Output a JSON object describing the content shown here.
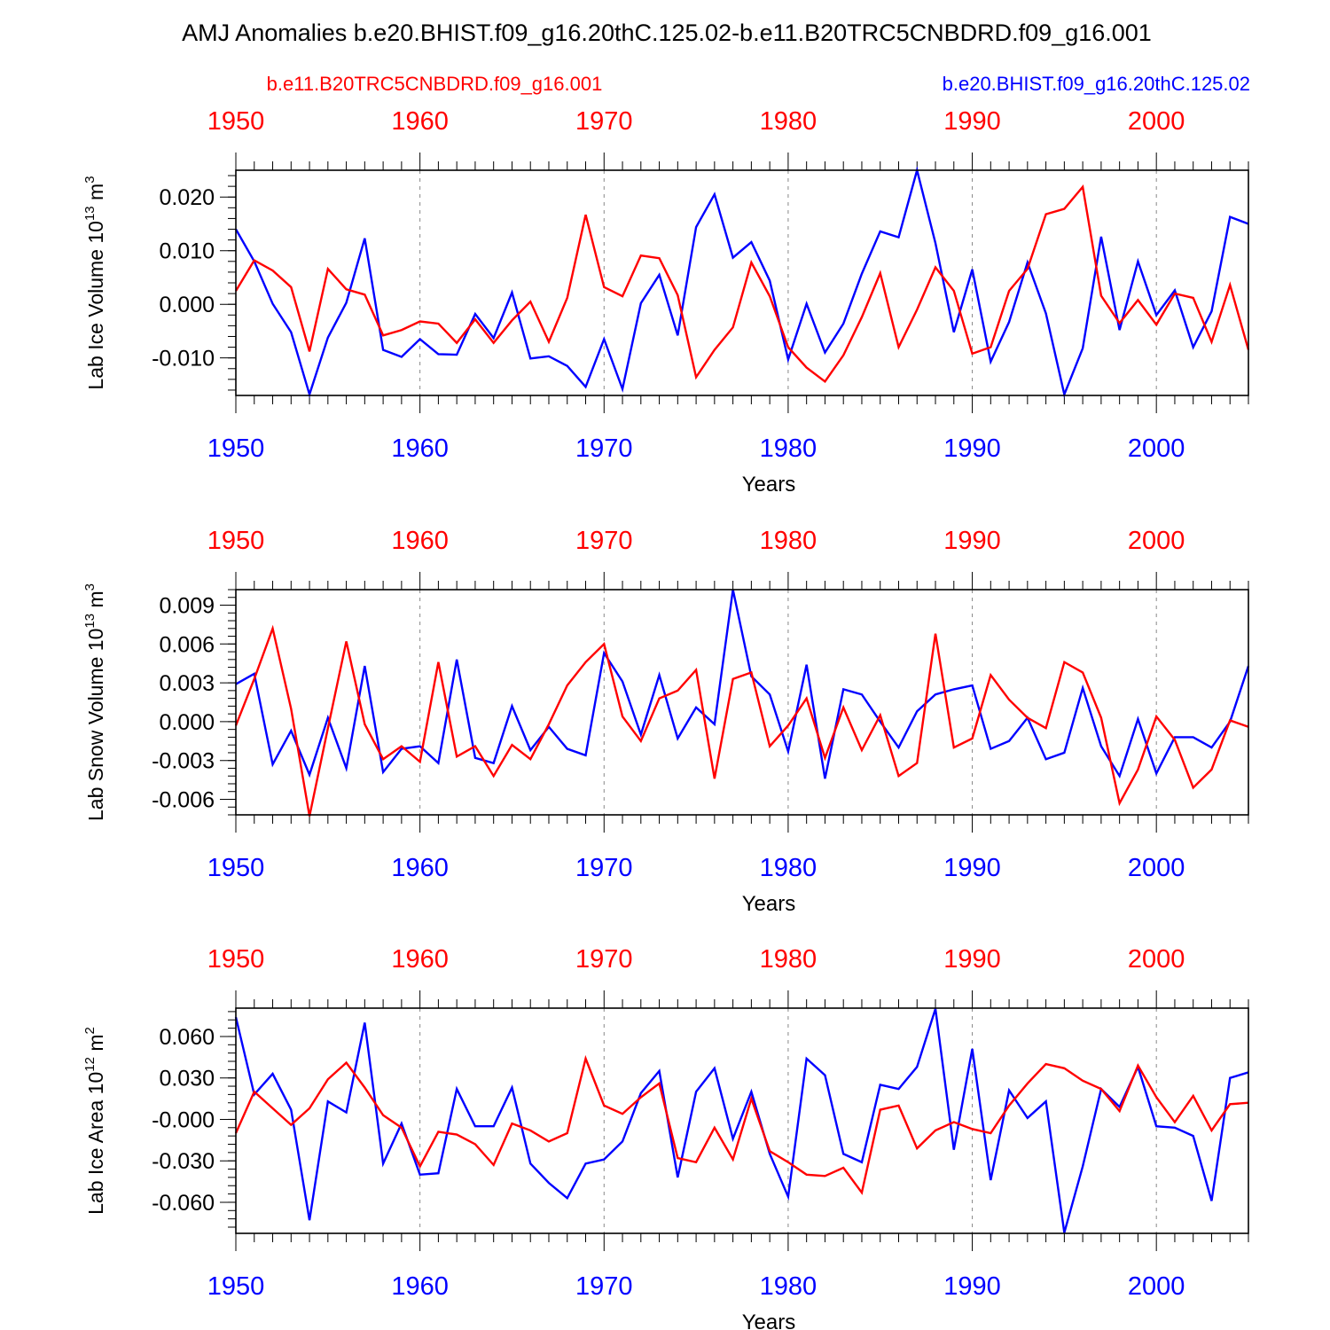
{
  "title": "AMJ Anomalies b.e20.BHIST.f09_g16.20thC.125.02-b.e11.B20TRC5CNBDRD.f09_g16.001",
  "legend": {
    "red_label": "b.e11.B20TRC5CNBDRD.f09_g16.001",
    "blue_label": "b.e20.BHIST.f09_g16.20thC.125.02"
  },
  "colors": {
    "red": "#ff0000",
    "blue": "#0000ff",
    "axis": "#000000",
    "grid": "#888888"
  },
  "chart_data": [
    {
      "type": "line",
      "title": "",
      "ylabel_main": "Lab Ice Volume 10",
      "ylabel_exp": "13",
      "ylabel_unit": "m",
      "ylabel_unit_exp": "3",
      "xlabel": "Years",
      "xlim": [
        1950,
        2005
      ],
      "ylim": [
        -0.017,
        0.025
      ],
      "x_ticks": [
        "1950",
        "1960",
        "1970",
        "1980",
        "1990",
        "2000"
      ],
      "y_ticks": [
        {
          "value": 0.02,
          "label": "0.020"
        },
        {
          "value": 0.01,
          "label": "0.010"
        },
        {
          "value": 0.0,
          "label": "0.000"
        },
        {
          "value": -0.01,
          "label": "-0.010"
        }
      ],
      "y_minor_step": 0.002,
      "grid": "vertical dashed at major x ticks",
      "x": [
        1950,
        1951,
        1952,
        1953,
        1954,
        1955,
        1956,
        1957,
        1958,
        1959,
        1960,
        1961,
        1962,
        1963,
        1964,
        1965,
        1966,
        1967,
        1968,
        1969,
        1970,
        1971,
        1972,
        1973,
        1974,
        1975,
        1976,
        1977,
        1978,
        1979,
        1980,
        1981,
        1982,
        1983,
        1984,
        1985,
        1986,
        1987,
        1988,
        1989,
        1990,
        1991,
        1992,
        1993,
        1994,
        1995,
        1996,
        1997,
        1998,
        1999,
        2000,
        2001,
        2002,
        2003,
        2004,
        2005
      ],
      "series": [
        {
          "name": "b.e11.B20TRC5CNBDRD.f09_g16.001",
          "color": "red",
          "values": [
            0.0025,
            0.0082,
            0.0063,
            0.0032,
            -0.0088,
            0.0066,
            0.0028,
            0.0018,
            -0.0058,
            -0.0048,
            -0.0032,
            -0.0036,
            -0.0072,
            -0.0028,
            -0.0072,
            -0.003,
            0.0005,
            -0.007,
            0.0012,
            0.0167,
            0.0032,
            0.0015,
            0.0091,
            0.0086,
            0.0017,
            -0.0136,
            -0.0085,
            -0.0043,
            0.0078,
            0.0015,
            -0.008,
            -0.0118,
            -0.0144,
            -0.0095,
            -0.0024,
            0.0058,
            -0.008,
            -0.001,
            0.0069,
            0.0025,
            -0.0092,
            -0.008,
            0.0025,
            0.0066,
            0.0168,
            0.0178,
            0.0219,
            0.0016,
            -0.0035,
            0.0008,
            -0.0038,
            0.002,
            0.0012,
            -0.007,
            0.0036,
            -0.0085
          ]
        },
        {
          "name": "b.e20.BHIST.f09_g16.20thC.125.02",
          "color": "blue",
          "values": [
            0.014,
            0.008,
            0.0001,
            -0.0052,
            -0.0168,
            -0.0062,
            0.0003,
            0.0123,
            -0.0085,
            -0.0098,
            -0.0065,
            -0.0093,
            -0.0094,
            -0.0018,
            -0.0063,
            0.0022,
            -0.0101,
            -0.0097,
            -0.0115,
            -0.0154,
            -0.0065,
            -0.0158,
            0.0002,
            0.0055,
            -0.0058,
            0.0144,
            0.0205,
            0.0087,
            0.0116,
            0.0044,
            -0.0103,
            0.0001,
            -0.009,
            -0.0036,
            0.0057,
            0.0136,
            0.0125,
            0.025,
            0.0114,
            -0.0052,
            0.0065,
            -0.0107,
            -0.0033,
            0.0078,
            -0.0017,
            -0.0168,
            -0.0082,
            0.0126,
            -0.0048,
            0.008,
            -0.002,
            0.0026,
            -0.008,
            -0.0013,
            0.0163,
            0.015
          ]
        }
      ]
    },
    {
      "type": "line",
      "title": "",
      "ylabel_main": "Lab Snow Volume 10",
      "ylabel_exp": "13",
      "ylabel_unit": "m",
      "ylabel_unit_exp": "3",
      "xlabel": "Years",
      "xlim": [
        1950,
        2005
      ],
      "ylim": [
        -0.0072,
        0.0102
      ],
      "x_ticks": [
        "1950",
        "1960",
        "1970",
        "1980",
        "1990",
        "2000"
      ],
      "y_ticks": [
        {
          "value": 0.009,
          "label": "0.009"
        },
        {
          "value": 0.006,
          "label": "0.006"
        },
        {
          "value": 0.003,
          "label": "0.003"
        },
        {
          "value": 0.0,
          "label": "0.000"
        },
        {
          "value": -0.003,
          "label": "-0.003"
        },
        {
          "value": -0.006,
          "label": "-0.006"
        }
      ],
      "y_minor_step": 0.0006,
      "grid": "vertical dashed at major x ticks",
      "x": [
        1950,
        1951,
        1952,
        1953,
        1954,
        1955,
        1956,
        1957,
        1958,
        1959,
        1960,
        1961,
        1962,
        1963,
        1964,
        1965,
        1966,
        1967,
        1968,
        1969,
        1970,
        1971,
        1972,
        1973,
        1974,
        1975,
        1976,
        1977,
        1978,
        1979,
        1980,
        1981,
        1982,
        1983,
        1984,
        1985,
        1986,
        1987,
        1988,
        1989,
        1990,
        1991,
        1992,
        1993,
        1994,
        1995,
        1996,
        1997,
        1998,
        1999,
        2000,
        2001,
        2002,
        2003,
        2004,
        2005
      ],
      "series": [
        {
          "name": "b.e11.B20TRC5CNBDRD.f09_g16.001",
          "color": "red",
          "values": [
            -0.0003,
            0.0033,
            0.0072,
            0.001,
            -0.0073,
            -0.0005,
            0.0062,
            -0.0002,
            -0.0029,
            -0.0019,
            -0.0031,
            0.0046,
            -0.0027,
            -0.0019,
            -0.0042,
            -0.0018,
            -0.0029,
            -0.0002,
            0.0028,
            0.0046,
            0.006,
            0.0004,
            -0.0015,
            0.0018,
            0.0024,
            0.004,
            -0.0044,
            0.0033,
            0.0038,
            -0.0019,
            -0.0003,
            0.0018,
            -0.0028,
            0.0011,
            -0.0022,
            0.0005,
            -0.0042,
            -0.0032,
            0.0068,
            -0.002,
            -0.0013,
            0.0036,
            0.0017,
            0.0003,
            -0.0005,
            0.0046,
            0.0038,
            0.0003,
            -0.0063,
            -0.0037,
            0.0004,
            -0.0014,
            -0.0051,
            -0.0037,
            0.0001,
            -0.0004
          ]
        },
        {
          "name": "b.e20.BHIST.f09_g16.20thC.125.02",
          "color": "blue",
          "values": [
            0.0029,
            0.0037,
            -0.0033,
            -0.0007,
            -0.0041,
            0.0003,
            -0.0036,
            0.0043,
            -0.0039,
            -0.0021,
            -0.0019,
            -0.0032,
            0.0048,
            -0.0028,
            -0.0032,
            0.0012,
            -0.0022,
            -0.0004,
            -0.0021,
            -0.0026,
            0.0053,
            0.0031,
            -0.001,
            0.0036,
            -0.0013,
            0.0011,
            -0.0002,
            0.0102,
            0.0035,
            0.0021,
            -0.0023,
            0.0044,
            -0.0044,
            0.0025,
            0.0021,
            0.0,
            -0.002,
            0.0008,
            0.0021,
            0.0025,
            0.0028,
            -0.0021,
            -0.0015,
            0.0003,
            -0.0029,
            -0.0024,
            0.0026,
            -0.0019,
            -0.0042,
            0.0002,
            -0.004,
            -0.0012,
            -0.0012,
            -0.002,
            0.0,
            0.0043
          ]
        }
      ]
    },
    {
      "type": "line",
      "title": "",
      "ylabel_main": "Lab Ice Area 10",
      "ylabel_exp": "12",
      "ylabel_unit": "m",
      "ylabel_unit_exp": "2",
      "xlabel": "Years",
      "xlim": [
        1950,
        2005
      ],
      "ylim": [
        -0.0825,
        0.0805
      ],
      "x_ticks": [
        "1950",
        "1960",
        "1970",
        "1980",
        "1990",
        "2000"
      ],
      "y_ticks": [
        {
          "value": 0.06,
          "label": "0.060"
        },
        {
          "value": 0.03,
          "label": "0.030"
        },
        {
          "value": 0.0,
          "label": "-0.000"
        },
        {
          "value": -0.03,
          "label": "-0.030"
        },
        {
          "value": -0.06,
          "label": "-0.060"
        }
      ],
      "y_minor_step": 0.006,
      "grid": "vertical dashed at major x ticks",
      "x": [
        1950,
        1951,
        1952,
        1953,
        1954,
        1955,
        1956,
        1957,
        1958,
        1959,
        1960,
        1961,
        1962,
        1963,
        1964,
        1965,
        1966,
        1967,
        1968,
        1969,
        1970,
        1971,
        1972,
        1973,
        1974,
        1975,
        1976,
        1977,
        1978,
        1979,
        1980,
        1981,
        1982,
        1983,
        1984,
        1985,
        1986,
        1987,
        1988,
        1989,
        1990,
        1991,
        1992,
        1993,
        1994,
        1995,
        1996,
        1997,
        1998,
        1999,
        2000,
        2001,
        2002,
        2003,
        2004,
        2005
      ],
      "series": [
        {
          "name": "b.e11.B20TRC5CNBDRD.f09_g16.001",
          "color": "red",
          "values": [
            -0.01,
            0.02,
            0.008,
            -0.004,
            0.008,
            0.029,
            0.041,
            0.023,
            0.003,
            -0.006,
            -0.034,
            -0.009,
            -0.011,
            -0.018,
            -0.033,
            -0.003,
            -0.008,
            -0.016,
            -0.01,
            0.044,
            0.01,
            0.004,
            0.016,
            0.026,
            -0.028,
            -0.031,
            -0.006,
            -0.029,
            0.015,
            -0.023,
            -0.031,
            -0.04,
            -0.041,
            -0.035,
            -0.053,
            0.007,
            0.01,
            -0.021,
            -0.008,
            -0.002,
            -0.007,
            -0.01,
            0.01,
            0.026,
            0.04,
            0.037,
            0.028,
            0.022,
            0.006,
            0.039,
            0.016,
            -0.002,
            0.017,
            -0.008,
            0.011,
            0.012
          ]
        },
        {
          "name": "b.e20.BHIST.f09_g16.20thC.125.02",
          "color": "blue",
          "values": [
            0.074,
            0.018,
            0.033,
            0.007,
            -0.073,
            0.013,
            0.005,
            0.07,
            -0.032,
            -0.003,
            -0.04,
            -0.039,
            0.022,
            -0.005,
            -0.005,
            0.023,
            -0.032,
            -0.046,
            -0.057,
            -0.032,
            -0.029,
            -0.016,
            0.019,
            0.035,
            -0.042,
            0.02,
            0.037,
            -0.014,
            0.02,
            -0.025,
            -0.056,
            0.044,
            0.032,
            -0.025,
            -0.031,
            0.025,
            0.022,
            0.038,
            0.08,
            -0.022,
            0.051,
            -0.044,
            0.021,
            0.001,
            0.013,
            -0.082,
            -0.034,
            0.022,
            0.009,
            0.038,
            -0.005,
            -0.006,
            -0.012,
            -0.059,
            0.03,
            0.034
          ]
        }
      ]
    }
  ]
}
